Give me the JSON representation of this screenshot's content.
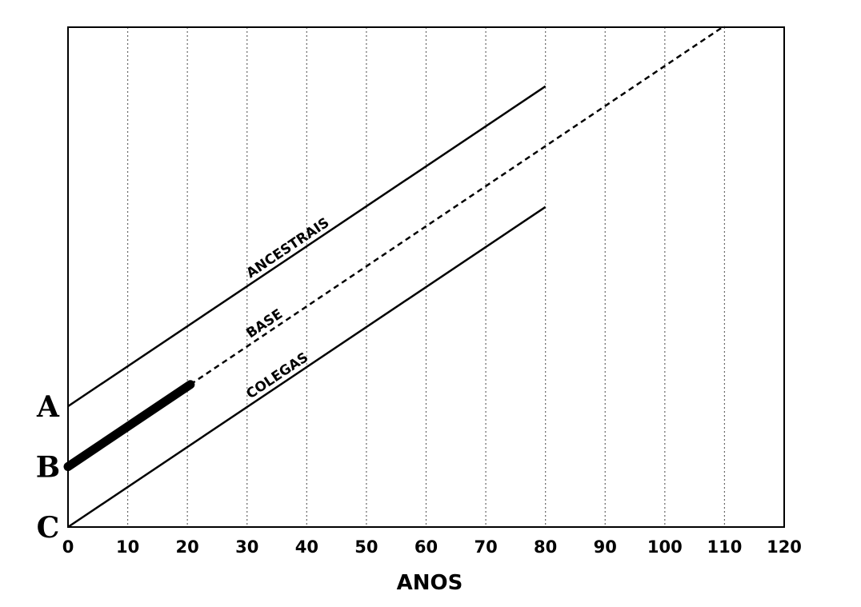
{
  "chart_data": {
    "type": "line",
    "xlabel": "ANOS",
    "xlim": [
      0,
      120
    ],
    "x_ticks": [
      0,
      10,
      20,
      30,
      40,
      50,
      60,
      70,
      80,
      90,
      100,
      110,
      120
    ],
    "grid": "vertical-dotted",
    "y_markers": [
      {
        "label": "A",
        "y": 2
      },
      {
        "label": "B",
        "y": 1
      },
      {
        "label": "C",
        "y": 0
      }
    ],
    "series": [
      {
        "name": "ANCESTRAIS",
        "points": [
          [
            0,
            2
          ],
          [
            80,
            7.3
          ]
        ],
        "style": "solid",
        "label_at_x": 30
      },
      {
        "name": "BASE",
        "points": [
          [
            0,
            1
          ],
          [
            110,
            8.3
          ]
        ],
        "style": "dashed",
        "bold_until_x": 20.5,
        "label_at_x": 30
      },
      {
        "name": "COLEGAS",
        "points": [
          [
            0,
            0
          ],
          [
            80,
            5.3
          ]
        ],
        "style": "solid",
        "label_at_x": 30
      }
    ]
  }
}
